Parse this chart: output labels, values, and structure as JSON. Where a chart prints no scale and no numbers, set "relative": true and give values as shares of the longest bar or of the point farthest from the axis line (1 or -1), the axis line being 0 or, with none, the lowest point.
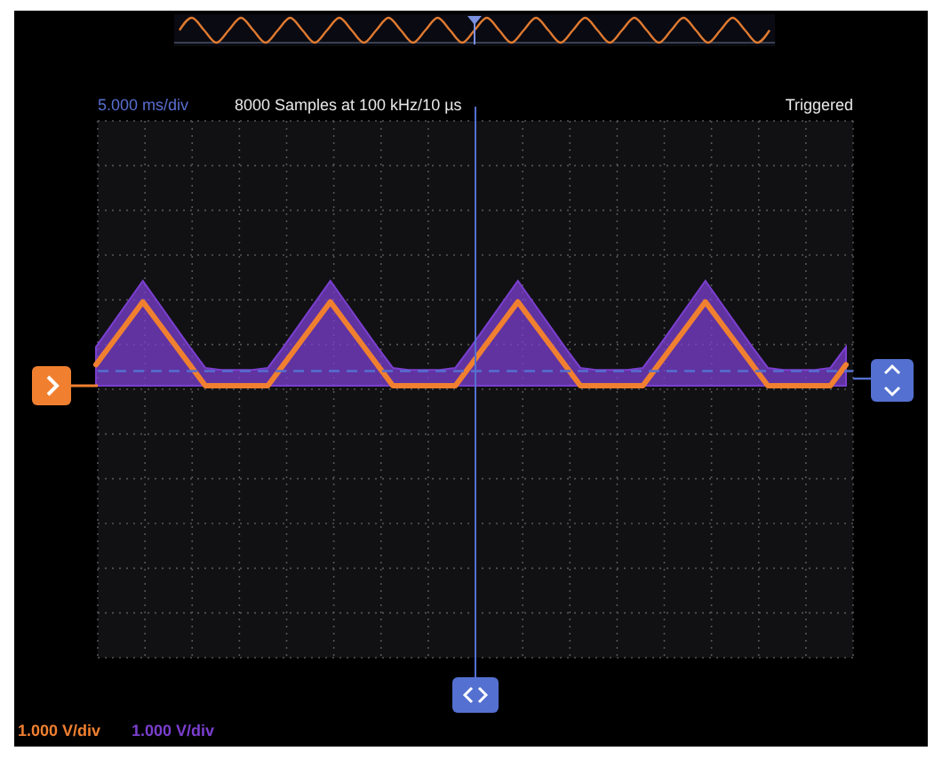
{
  "chart_data": [
    {
      "type": "line",
      "relative": true,
      "categories": [
        null,
        null,
        null,
        null,
        null,
        null,
        null,
        null,
        null,
        null,
        null,
        null,
        null,
        null,
        null,
        null,
        null,
        null,
        null,
        null,
        null,
        null,
        null,
        null,
        null,
        null,
        null,
        null,
        null,
        null,
        null,
        null,
        null,
        null,
        null,
        null,
        null,
        null,
        null,
        null,
        null,
        null,
        null,
        null,
        null,
        null,
        null,
        null,
        null
      ],
      "series": [
        {
          "color": "#e07a30",
          "values": [
            0.5,
            1,
            0.5,
            0,
            0.5,
            1,
            0.5,
            0,
            0.5,
            1,
            0.5,
            0,
            0.5,
            1,
            0.5,
            0,
            0.5,
            1,
            0.5,
            0,
            0.5,
            1,
            0.5,
            0,
            0.5,
            1,
            0.5,
            0,
            0.5,
            1,
            0.5,
            0,
            0.5,
            1,
            0.5,
            0,
            0.5,
            1,
            0.5,
            0,
            0.5,
            1,
            0.5,
            0,
            0.5,
            1,
            0.5,
            0,
            0.5
          ]
        }
      ]
    },
    {
      "type": "line",
      "relative": true,
      "subtitle": "8000 Samples at 100 kHz/10 µs",
      "annotations": [
        "5.000 ms/div",
        "Triggered",
        "1.000 V/div",
        "1.000 V/div"
      ],
      "categories": [
        null,
        null,
        null,
        null,
        null,
        null,
        null,
        null,
        null,
        null,
        null,
        null,
        null,
        null,
        null,
        null,
        null,
        null,
        null,
        null,
        null,
        null,
        null,
        null,
        null,
        null,
        null,
        null,
        null,
        null,
        null,
        null,
        null,
        null,
        null,
        null,
        null,
        null,
        null,
        null,
        null,
        null,
        null,
        null,
        null,
        null,
        null,
        null,
        null
      ],
      "series": [
        {
          "type": "area",
          "color": "#7b3fd0",
          "values": [
            0.37,
            0.58,
            0.79,
            1,
            0.79,
            0.58,
            0.37,
            0.17,
            0.15,
            0.15,
            0.15,
            0.17,
            0.37,
            0.58,
            0.79,
            1,
            0.79,
            0.58,
            0.37,
            0.17,
            0.15,
            0.15,
            0.15,
            0.17,
            0.37,
            0.58,
            0.79,
            1,
            0.79,
            0.58,
            0.37,
            0.17,
            0.15,
            0.15,
            0.15,
            0.17,
            0.37,
            0.58,
            0.79,
            1,
            0.79,
            0.58,
            0.37,
            0.17,
            0.15,
            0.15,
            0.15,
            0.17,
            0.37
          ]
        },
        {
          "type": "line",
          "color": "#f08030",
          "values": [
            0.2,
            0.4,
            0.6,
            0.8,
            0.6,
            0.4,
            0.2,
            0,
            0,
            0,
            0,
            0,
            0.2,
            0.4,
            0.6,
            0.8,
            0.6,
            0.4,
            0.2,
            0,
            0,
            0,
            0,
            0,
            0.2,
            0.4,
            0.6,
            0.8,
            0.6,
            0.4,
            0.2,
            0,
            0,
            0,
            0,
            0,
            0.2,
            0.4,
            0.6,
            0.8,
            0.6,
            0.4,
            0.2,
            0,
            0,
            0,
            0,
            0,
            0.2
          ]
        }
      ],
      "ref_lines": [
        {
          "axis": "y",
          "value": 0.14,
          "color": "#5470d0",
          "line_style": "dashed"
        }
      ],
      "grid": true
    }
  ]
}
